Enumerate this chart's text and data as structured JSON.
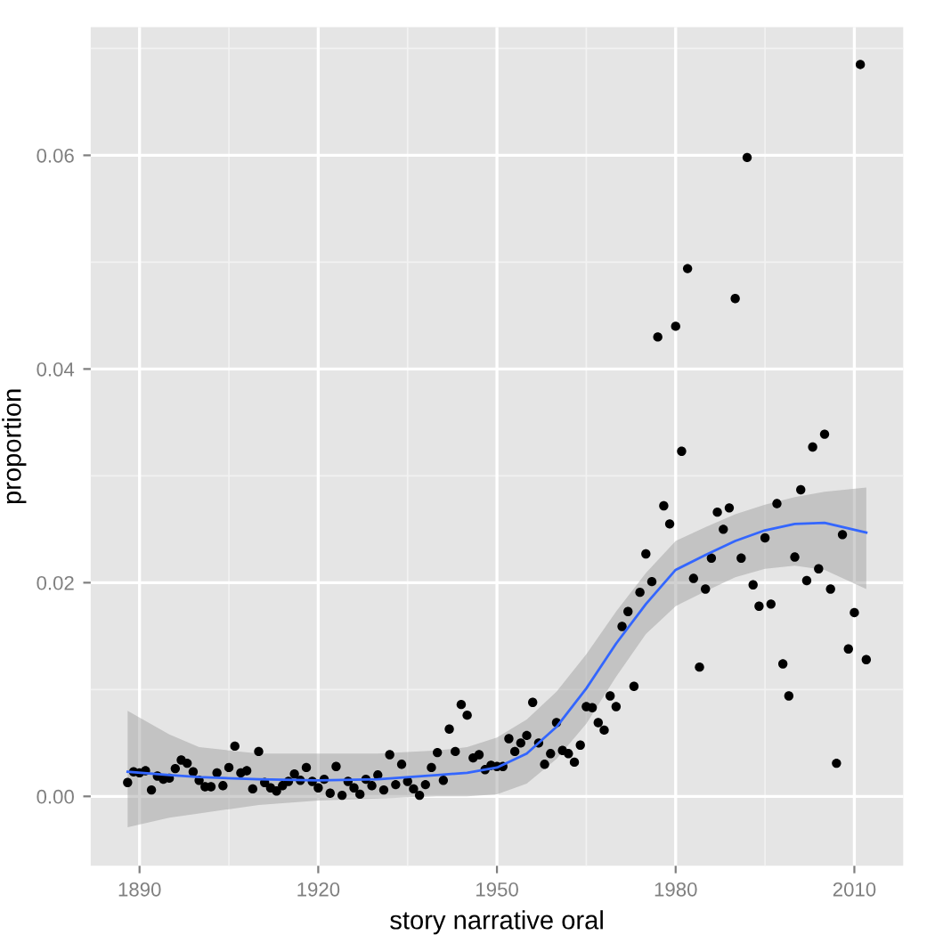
{
  "chart_data": {
    "type": "scatter",
    "xlabel": "story narrative oral",
    "ylabel": "proportion",
    "xlim": [
      1881.8,
      2018.2
    ],
    "xticks": [
      1890,
      1920,
      1950,
      1980,
      2010
    ],
    "ylim": [
      -0.0065,
      0.072
    ],
    "yticks": [
      {
        "value": 0,
        "label": "0.00"
      },
      {
        "value": 0.02,
        "label": "0.02"
      },
      {
        "value": 0.04,
        "label": "0.04"
      },
      {
        "value": 0.06,
        "label": "0.06"
      }
    ],
    "grid": true,
    "marker": "circle",
    "series": [
      {
        "color": "#000000",
        "x": [
          1888,
          1889,
          1890,
          1891,
          1892,
          1893,
          1894,
          1895,
          1896,
          1897,
          1898,
          1899,
          1900,
          1901,
          1902,
          1903,
          1904,
          1905,
          1906,
          1907,
          1908,
          1909,
          1910,
          1911,
          1912,
          1913,
          1914,
          1915,
          1916,
          1917,
          1918,
          1919,
          1920,
          1921,
          1922,
          1923,
          1924,
          1925,
          1926,
          1927,
          1928,
          1929,
          1930,
          1931,
          1932,
          1933,
          1934,
          1935,
          1936,
          1937,
          1938,
          1939,
          1940,
          1941,
          1942,
          1943,
          1944,
          1945,
          1946,
          1947,
          1948,
          1949,
          1950,
          1951,
          1952,
          1953,
          1954,
          1955,
          1956,
          1957,
          1958,
          1959,
          1960,
          1961,
          1962,
          1963,
          1964,
          1965,
          1966,
          1967,
          1968,
          1969,
          1970,
          1971,
          1972,
          1973,
          1974,
          1975,
          1976,
          1977,
          1978,
          1979,
          1980,
          1981,
          1982,
          1983,
          1984,
          1985,
          1986,
          1987,
          1988,
          1989,
          1990,
          1991,
          1992,
          1993,
          1994,
          1995,
          1996,
          1997,
          1998,
          1999,
          2000,
          2001,
          2002,
          2003,
          2004,
          2005,
          2006,
          2007,
          2008,
          2009,
          2010,
          2011,
          2012
        ],
        "values": [
          0.0013,
          0.0023,
          0.0022,
          0.0024,
          0.0006,
          0.0019,
          0.0016,
          0.0017,
          0.0026,
          0.0034,
          0.0031,
          0.0023,
          0.0015,
          0.0009,
          0.0009,
          0.0022,
          0.001,
          0.0027,
          0.0047,
          0.0022,
          0.0024,
          0.0007,
          0.0042,
          0.0013,
          0.0008,
          0.0005,
          0.001,
          0.0014,
          0.0021,
          0.0015,
          0.0027,
          0.0014,
          0.0008,
          0.0016,
          0.0003,
          0.0028,
          0.0001,
          0.0014,
          0.0008,
          0.0002,
          0.0016,
          0.001,
          0.002,
          0.0006,
          0.0039,
          0.0011,
          0.003,
          0.0014,
          0.0007,
          0.0001,
          0.0011,
          0.0027,
          0.0041,
          0.0015,
          0.0063,
          0.0042,
          0.0086,
          0.0076,
          0.0036,
          0.0039,
          0.0025,
          0.0029,
          0.0028,
          0.0028,
          0.0054,
          0.0042,
          0.005,
          0.0057,
          0.0088,
          0.005,
          0.003,
          0.004,
          0.0069,
          0.0043,
          0.004,
          0.0032,
          0.0048,
          0.0084,
          0.0083,
          0.0069,
          0.0062,
          0.0094,
          0.0084,
          0.0159,
          0.0173,
          0.0103,
          0.0191,
          0.0227,
          0.0201,
          0.043,
          0.0272,
          0.0255,
          0.044,
          0.0323,
          0.0494,
          0.0204,
          0.0121,
          0.0194,
          0.0223,
          0.0266,
          0.025,
          0.027,
          0.0466,
          0.0223,
          0.0598,
          0.0198,
          0.0178,
          0.0242,
          0.018,
          0.0274,
          0.0124,
          0.0094,
          0.0224,
          0.0287,
          0.0202,
          0.0327,
          0.0213,
          0.0339,
          0.0194,
          0.0031,
          0.0245,
          0.0138,
          0.0172,
          0.0685,
          0.0128
        ]
      },
      {
        "type": "line",
        "color": "#3366ff",
        "marker": "none",
        "line_style": "solid",
        "x": [
          1888,
          1895,
          1900,
          1910,
          1920,
          1930,
          1940,
          1945,
          1950,
          1955,
          1960,
          1965,
          1970,
          1975,
          1980,
          1985,
          1990,
          1995,
          2000,
          2005,
          2012
        ],
        "values": [
          0.0023,
          0.002,
          0.0018,
          0.0016,
          0.0015,
          0.0016,
          0.002,
          0.0022,
          0.0027,
          0.004,
          0.0065,
          0.0101,
          0.0143,
          0.018,
          0.0212,
          0.0226,
          0.0239,
          0.0249,
          0.0255,
          0.0256,
          0.0247
        ],
        "upper": [
          0.008,
          0.0058,
          0.0046,
          0.004,
          0.004,
          0.004,
          0.0043,
          0.0046,
          0.0055,
          0.0072,
          0.0098,
          0.0133,
          0.0173,
          0.0209,
          0.0239,
          0.0252,
          0.0264,
          0.0273,
          0.028,
          0.0285,
          0.0289
        ],
        "lower": [
          -0.0029,
          -0.002,
          -0.0016,
          -0.0008,
          -0.0004,
          -0.0002,
          0.0,
          0.0,
          0.0002,
          0.0012,
          0.0035,
          0.0068,
          0.0112,
          0.0152,
          0.0178,
          0.0192,
          0.0205,
          0.0213,
          0.0216,
          0.0212,
          0.0194
        ]
      }
    ]
  }
}
